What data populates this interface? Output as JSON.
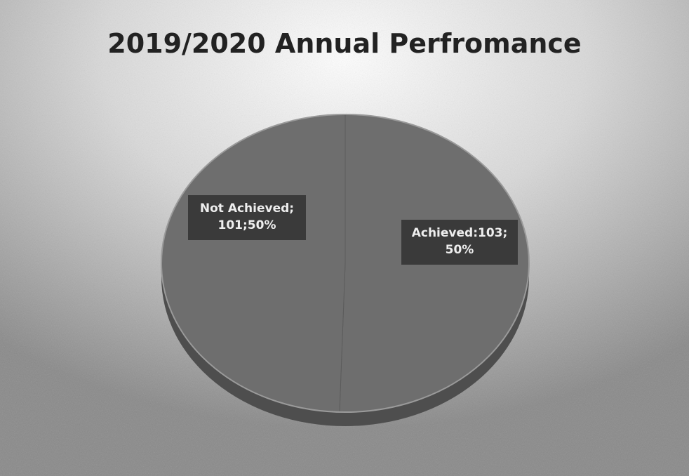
{
  "chart_data": {
    "type": "pie",
    "title": "2019/2020 Annual Perfromance",
    "categories": [
      "Achieved",
      "Not Achieved"
    ],
    "values": [
      103,
      101
    ],
    "percentages": [
      50,
      50
    ],
    "data_labels": [
      [
        "Achieved:103;",
        "50%"
      ],
      [
        "Not Achieved;",
        "101;50%"
      ]
    ],
    "style": "3d-pie",
    "legend": "none"
  },
  "colors": {
    "background_dark": "#8a8a8a",
    "background_light": "#ffffff",
    "slice_top": "#6e6e6e",
    "slice_side": "#4e4e4e",
    "label_box": "#3a3a3a",
    "title": "#222222"
  }
}
